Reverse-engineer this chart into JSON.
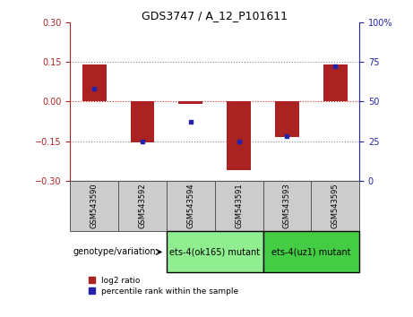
{
  "title": "GDS3747 / A_12_P101611",
  "samples": [
    "GSM543590",
    "GSM543592",
    "GSM543594",
    "GSM543591",
    "GSM543593",
    "GSM543595"
  ],
  "log2_ratios": [
    0.14,
    -0.155,
    -0.008,
    -0.26,
    -0.135,
    0.14
  ],
  "percentile_ranks": [
    58,
    25,
    37,
    25,
    28,
    72
  ],
  "groups": [
    {
      "label": "ets-4(ok165) mutant",
      "samples": [
        0,
        1,
        2
      ],
      "color": "#90EE90"
    },
    {
      "label": "ets-4(uz1) mutant",
      "samples": [
        3,
        4,
        5
      ],
      "color": "#44CC44"
    }
  ],
  "ylim_left": [
    -0.3,
    0.3
  ],
  "ylim_right": [
    0,
    100
  ],
  "yticks_left": [
    -0.3,
    -0.15,
    0,
    0.15,
    0.3
  ],
  "yticks_right": [
    0,
    25,
    50,
    75,
    100
  ],
  "bar_color": "#AA2222",
  "dot_color": "#2222AA",
  "bar_width": 0.5,
  "hline_color": "#DD2222",
  "dotted_color": "#888888",
  "bg_color": "#FFFFFF",
  "plot_bg": "#FFFFFF",
  "label_log2": "log2 ratio",
  "label_pct": "percentile rank within the sample",
  "genotype_label": "genotype/variation",
  "group_bg_light": "#CCCCCC",
  "group_border": "#555555"
}
